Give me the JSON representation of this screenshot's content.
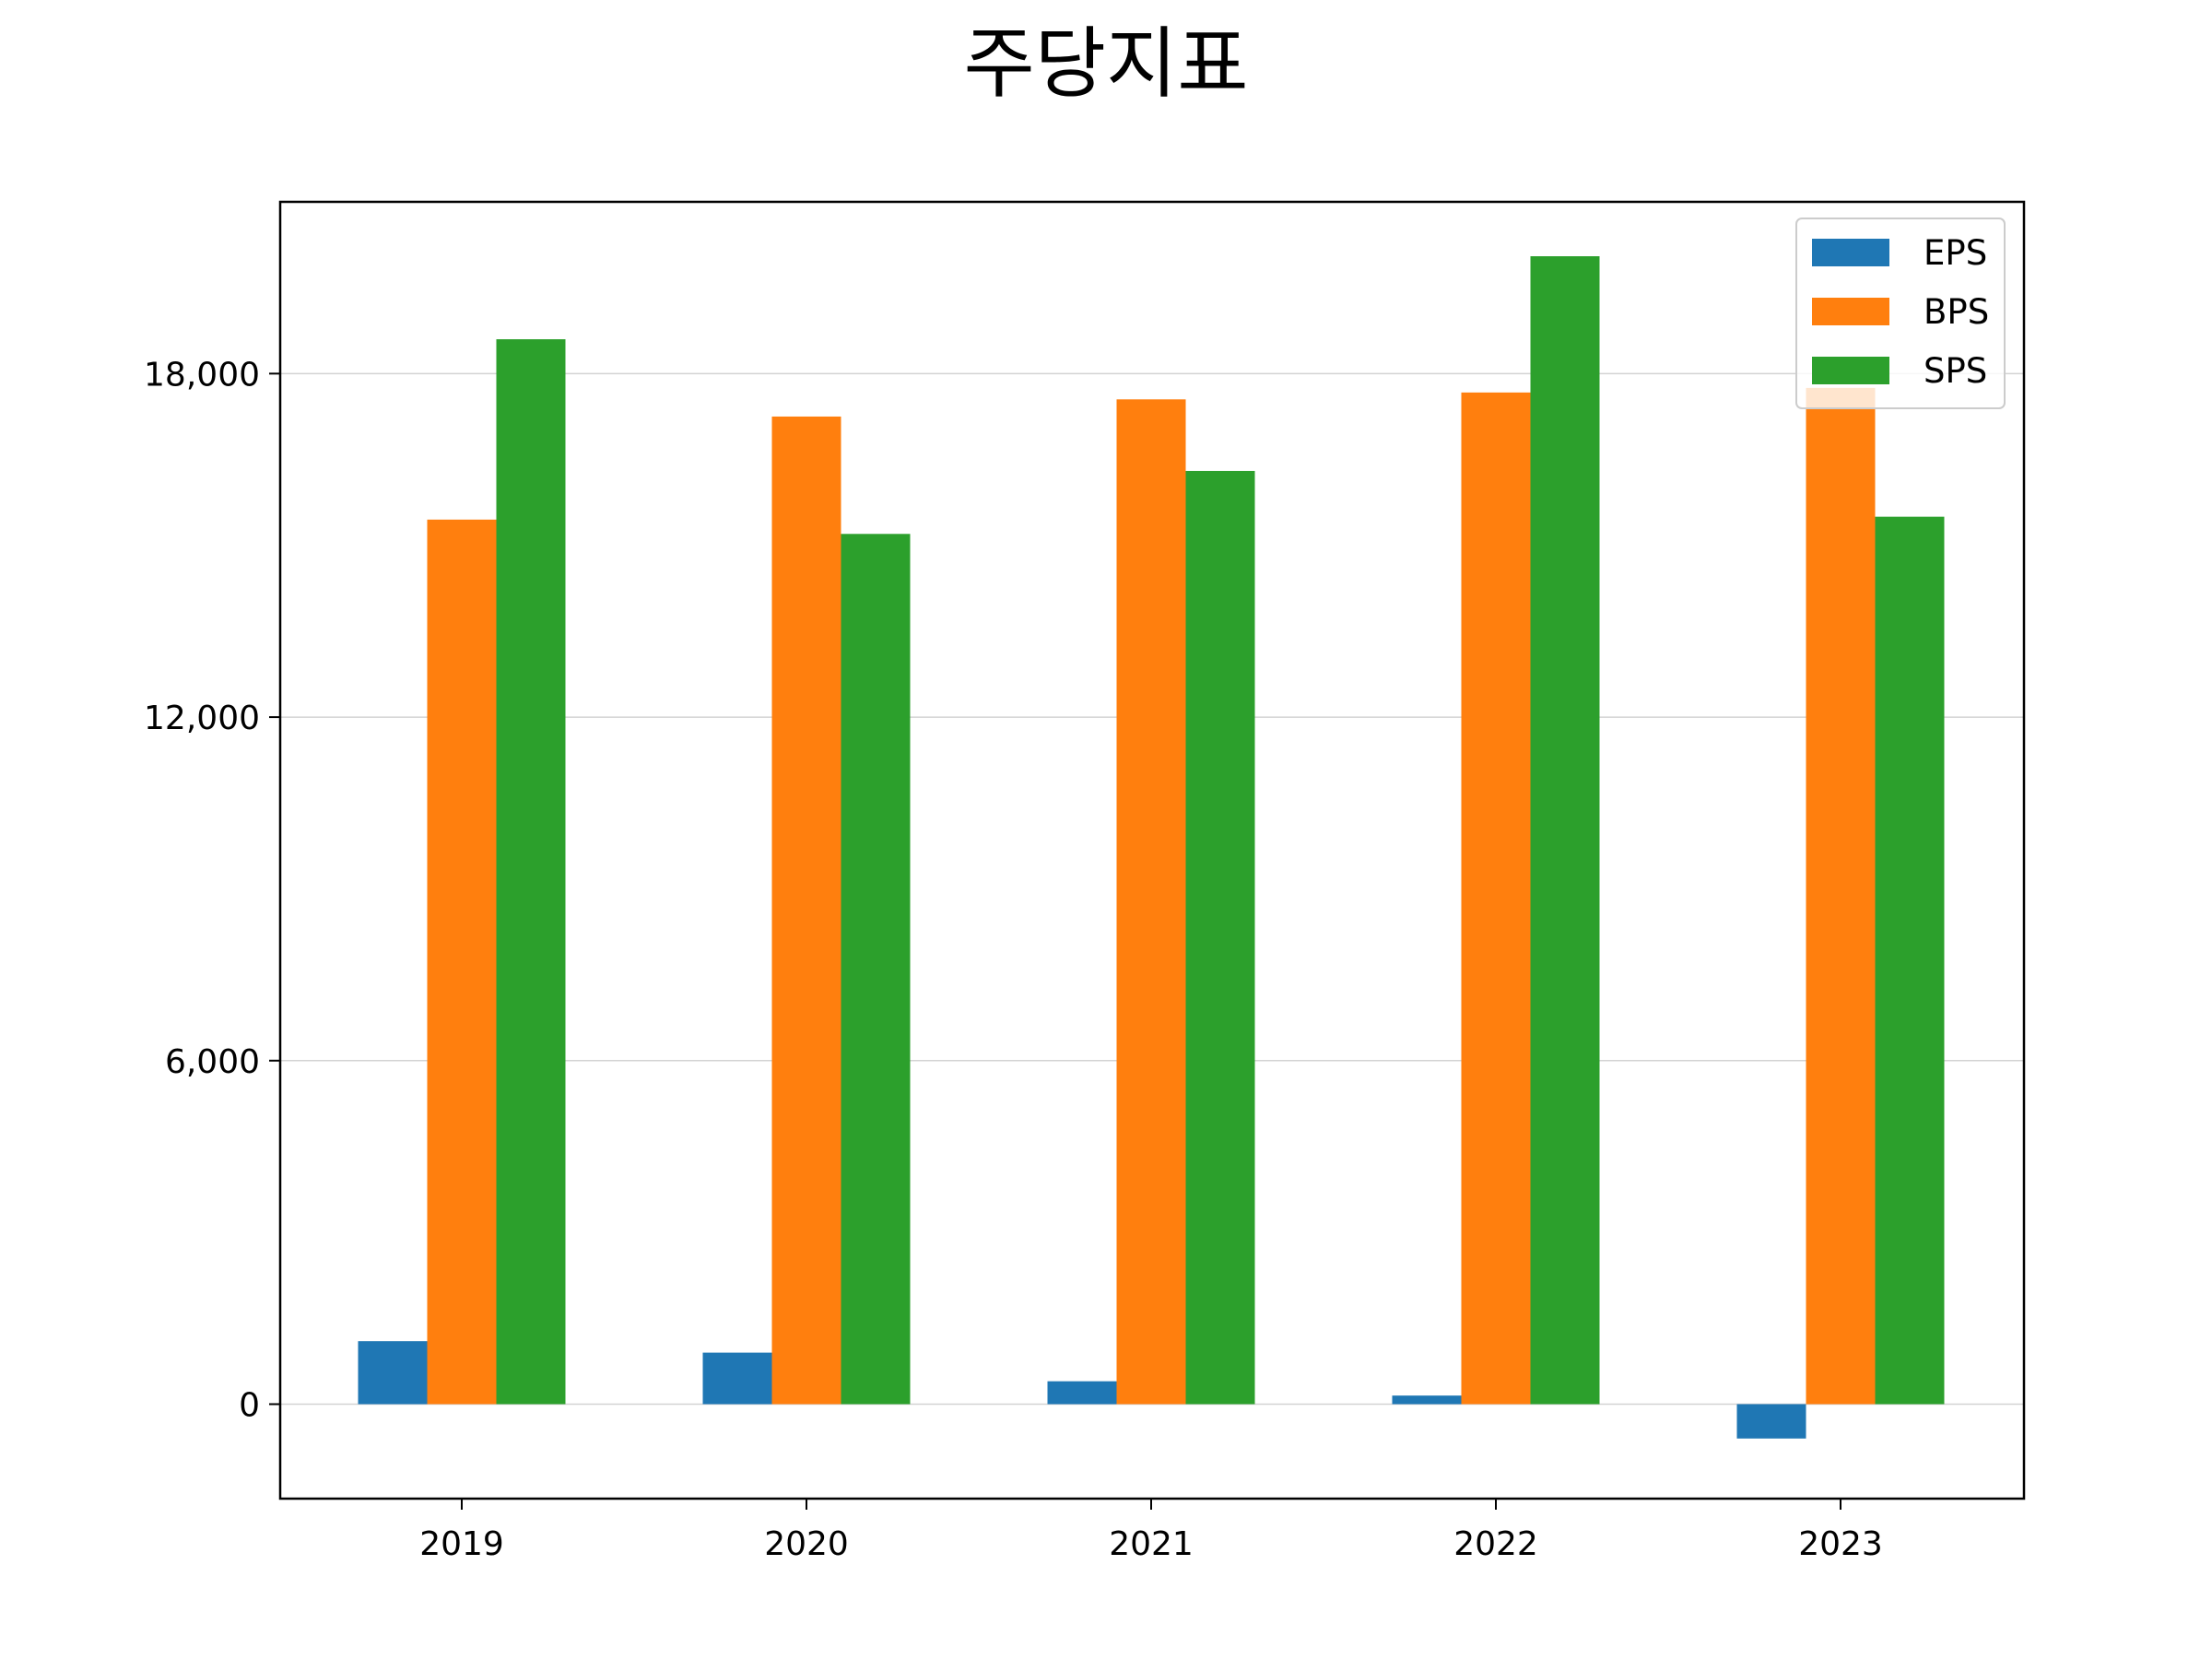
{
  "chart_data": {
    "type": "bar",
    "title": "주당지표",
    "xlabel": "",
    "ylabel": "",
    "categories": [
      "2019",
      "2020",
      "2021",
      "2022",
      "2023"
    ],
    "series": [
      {
        "name": "EPS",
        "color": "#1f77b4",
        "values": [
          1100,
          900,
          400,
          150,
          -600
        ]
      },
      {
        "name": "BPS",
        "color": "#ff7f0e",
        "values": [
          15450,
          17250,
          17550,
          17670,
          17750
        ]
      },
      {
        "name": "SPS",
        "color": "#2ca02c",
        "values": [
          18600,
          15200,
          16300,
          20050,
          15500
        ]
      }
    ],
    "ylim": [
      -1650,
      21000
    ],
    "yticks": [
      0,
      6000,
      12000,
      18000
    ],
    "ytick_labels": [
      "0",
      "6,000",
      "12,000",
      "18,000"
    ],
    "grid": "horizontal",
    "legend": "top-right"
  }
}
